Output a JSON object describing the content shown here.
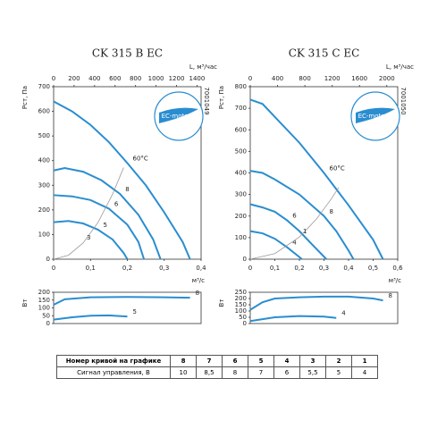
{
  "chart_data": [
    {
      "type": "line",
      "title": "CK 315 B EC",
      "x_label": "м³/с",
      "x2_label": "L, м³/час",
      "y_label": "Pст, Па",
      "code": "7001049",
      "logo": "EC-motor",
      "xlim": [
        0,
        0.4
      ],
      "xticks": [
        0,
        {
          "value": 0.1,
          "label": "0,1"
        },
        {
          "value": 0.2,
          "label": "0,2"
        },
        {
          "value": 0.3,
          "label": "0,3"
        },
        {
          "value": 0.4,
          "label": "0,4"
        }
      ],
      "x2lim": [
        0,
        1440
      ],
      "x2ticks": [
        0,
        200,
        400,
        600,
        800,
        1000,
        1200,
        1400
      ],
      "ylim": [
        0,
        700
      ],
      "yticks": [
        0,
        100,
        200,
        300,
        400,
        500,
        600,
        700
      ],
      "series": [
        {
          "name": "60°C",
          "color": "#2a8dd0",
          "x": [
            0,
            0.05,
            0.1,
            0.15,
            0.2,
            0.25,
            0.3,
            0.35,
            0.37
          ],
          "values": [
            640,
            600,
            545,
            475,
            390,
            300,
            190,
            70,
            0
          ]
        },
        {
          "name": "8",
          "color": "#2a8dd0",
          "x": [
            0,
            0.03,
            0.08,
            0.13,
            0.18,
            0.23,
            0.27,
            0.29
          ],
          "values": [
            360,
            370,
            355,
            320,
            265,
            180,
            80,
            0
          ]
        },
        {
          "name": "6",
          "color": "#2a8dd0",
          "x": [
            0,
            0.05,
            0.1,
            0.15,
            0.2,
            0.23,
            0.245
          ],
          "values": [
            260,
            255,
            240,
            205,
            140,
            70,
            0
          ]
        },
        {
          "name": "5",
          "color": "#2a8dd0",
          "x": [
            0,
            0.04,
            0.08,
            0.12,
            0.16,
            0.19,
            0.2
          ],
          "values": [
            150,
            155,
            145,
            120,
            80,
            25,
            0
          ]
        },
        {
          "color": "#9a9a9a",
          "x": [
            0,
            0.04,
            0.08,
            0.12,
            0.16,
            0.19
          ],
          "values": [
            0,
            16,
            66,
            148,
            264,
            372
          ]
        }
      ],
      "annotations": [
        "3"
      ]
    },
    {
      "type": "line",
      "y_label": "Вт",
      "xlim": [
        0,
        0.4
      ],
      "ylim": [
        0,
        200
      ],
      "yticks": [
        0,
        50,
        100,
        150,
        200
      ],
      "series": [
        {
          "name": "8",
          "color": "#2a8dd0",
          "x": [
            0,
            0.03,
            0.1,
            0.2,
            0.3,
            0.37
          ],
          "values": [
            120,
            155,
            168,
            170,
            168,
            165
          ]
        },
        {
          "name": "5",
          "color": "#2a8dd0",
          "x": [
            0,
            0.05,
            0.1,
            0.15,
            0.2
          ],
          "values": [
            25,
            40,
            50,
            52,
            45
          ]
        }
      ]
    },
    {
      "type": "line",
      "title": "CK 315 C EC",
      "x_label": "м³/с",
      "x2_label": "L, м³/час",
      "y_label": "Pст, Па",
      "code": "7001050",
      "logo": "EC-motor",
      "xlim": [
        0,
        0.6
      ],
      "xticks": [
        0,
        {
          "value": 0.1,
          "label": "0,1"
        },
        {
          "value": 0.2,
          "label": "0,2"
        },
        {
          "value": 0.3,
          "label": "0,3"
        },
        {
          "value": 0.4,
          "label": "0,4"
        },
        {
          "value": 0.5,
          "label": "0,5"
        },
        {
          "value": 0.6,
          "label": "0,6"
        }
      ],
      "x2lim": [
        0,
        2160
      ],
      "x2ticks": [
        0,
        400,
        800,
        1200,
        1600,
        2000
      ],
      "ylim": [
        0,
        800
      ],
      "yticks": [
        0,
        100,
        200,
        300,
        400,
        500,
        600,
        700,
        800
      ],
      "series": [
        {
          "name": "60°C",
          "color": "#2a8dd0",
          "x": [
            0,
            0.05,
            0.1,
            0.2,
            0.3,
            0.4,
            0.5,
            0.54
          ],
          "values": [
            740,
            720,
            660,
            540,
            400,
            250,
            90,
            0
          ]
        },
        {
          "name": "8",
          "color": "#2a8dd0",
          "x": [
            0,
            0.05,
            0.1,
            0.2,
            0.3,
            0.35,
            0.4,
            0.42
          ],
          "values": [
            410,
            400,
            370,
            300,
            200,
            130,
            40,
            0
          ]
        },
        {
          "name": "6",
          "color": "#2a8dd0",
          "x": [
            0,
            0.05,
            0.1,
            0.15,
            0.2,
            0.25,
            0.31
          ],
          "values": [
            255,
            240,
            220,
            180,
            130,
            70,
            0
          ]
        },
        {
          "name": "4",
          "color": "#2a8dd0",
          "x": [
            0,
            0.05,
            0.1,
            0.15,
            0.2,
            0.21
          ],
          "values": [
            130,
            120,
            95,
            55,
            10,
            0
          ]
        },
        {
          "color": "#9a9a9a",
          "x": [
            0,
            0.1,
            0.2,
            0.27,
            0.33,
            0.36
          ],
          "values": [
            0,
            26,
            103,
            187,
            280,
            333
          ]
        }
      ],
      "annotations": [
        "1"
      ]
    },
    {
      "type": "line",
      "y_label": "Вт",
      "xlim": [
        0,
        0.6
      ],
      "ylim": [
        0,
        250
      ],
      "yticks": [
        0,
        50,
        100,
        150,
        200,
        250
      ],
      "series": [
        {
          "name": "8",
          "color": "#2a8dd0",
          "x": [
            0,
            0.05,
            0.1,
            0.2,
            0.3,
            0.4,
            0.5,
            0.54
          ],
          "values": [
            110,
            170,
            200,
            210,
            215,
            215,
            200,
            185
          ]
        },
        {
          "name": "4",
          "color": "#2a8dd0",
          "x": [
            0,
            0.1,
            0.2,
            0.3,
            0.35
          ],
          "values": [
            20,
            50,
            60,
            55,
            45
          ]
        }
      ]
    }
  ],
  "table": {
    "header": [
      "Номер кривой на графике",
      "8",
      "7",
      "6",
      "5",
      "4",
      "3",
      "2",
      "1"
    ],
    "row": [
      "Сигнал управления, В",
      "10",
      "8,5",
      "8",
      "7",
      "6",
      "5,5",
      "5",
      "4"
    ]
  }
}
